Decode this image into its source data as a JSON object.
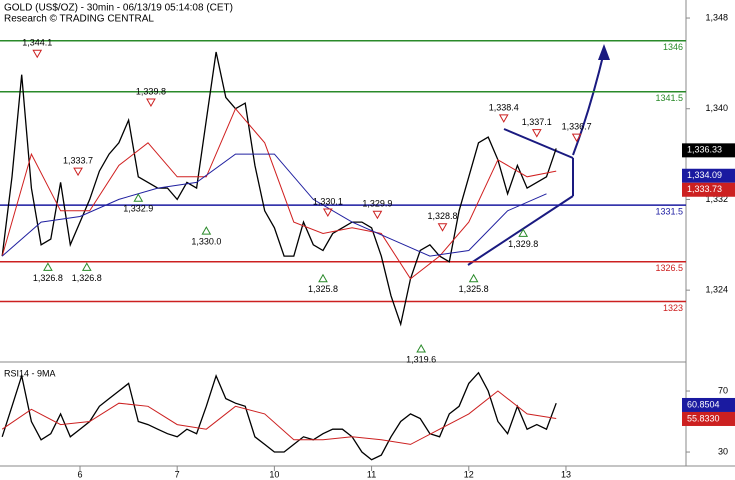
{
  "chart_data": [
    {
      "type": "line",
      "title": "GOLD (US$/OZ) - 30min - 06/13/19 05:14:08 (CET)",
      "subtitle": "Research © TRADING CENTRAL",
      "xlim": [
        1.77,
        72.35
      ],
      "ylim": [
        1317.84,
        1349.59
      ],
      "xticks": [
        {
          "value": 10,
          "label": "6"
        },
        {
          "value": 20,
          "label": "7"
        },
        {
          "value": 30,
          "label": "10"
        },
        {
          "value": 40,
          "label": "11"
        },
        {
          "value": 50,
          "label": "12"
        },
        {
          "value": 60,
          "label": "13"
        }
      ],
      "yticks": [
        {
          "value": 1348,
          "label": "1,348"
        },
        {
          "value": 1340,
          "label": "1,340"
        },
        {
          "value": 1332,
          "label": "1,332"
        },
        {
          "value": 1324,
          "label": "1,324"
        }
      ],
      "series": [
        {
          "color": "#000000",
          "x": [
            2,
            3,
            4,
            5,
            6,
            7,
            8,
            9,
            10,
            11,
            12,
            13,
            14,
            15,
            16,
            17,
            18,
            19,
            20,
            21,
            22,
            23,
            24,
            25,
            26,
            27,
            28,
            29,
            30,
            31,
            32,
            33,
            34,
            35,
            36,
            37,
            38,
            39,
            40,
            41,
            42,
            43,
            44,
            45,
            46,
            47,
            48,
            49,
            50,
            51,
            52,
            53,
            54,
            55,
            56,
            57,
            58,
            59
          ],
          "values": [
            1327,
            1334,
            1343,
            1333,
            1328,
            1328.5,
            1333.5,
            1328,
            1330,
            1332,
            1334.5,
            1336,
            1337,
            1339,
            1334,
            1333.5,
            1333,
            1333,
            1332,
            1333.5,
            1333,
            1339,
            1345,
            1341,
            1340,
            1340.5,
            1335,
            1331,
            1329.5,
            1327,
            1327,
            1330,
            1328,
            1327.5,
            1329,
            1329.5,
            1330,
            1330,
            1329.5,
            1327,
            1323.5,
            1321,
            1325,
            1327.5,
            1328,
            1327,
            1326.5,
            1331,
            1334,
            1337,
            1337.5,
            1335.5,
            1332.5,
            1335,
            1333,
            1333.5,
            1334,
            1336.5
          ]
        },
        {
          "color": "#d02020",
          "x": [
            2,
            5,
            8,
            11,
            14,
            17,
            20,
            23,
            26,
            29,
            32,
            35,
            38,
            41,
            44,
            47,
            50,
            53,
            56,
            59
          ],
          "values": [
            1327,
            1336,
            1331,
            1331,
            1335,
            1337,
            1334,
            1334,
            1340,
            1337,
            1330,
            1329,
            1329.5,
            1329,
            1325,
            1327,
            1330,
            1335.5,
            1334,
            1334.5
          ]
        },
        {
          "color": "#2020a0",
          "x": [
            2,
            6,
            10,
            14,
            18,
            22,
            26,
            30,
            34,
            38,
            42,
            46,
            50,
            54,
            58
          ],
          "values": [
            1327,
            1330,
            1330.5,
            1332,
            1333,
            1333.5,
            1336,
            1336,
            1332,
            1330,
            1328.5,
            1327,
            1327.5,
            1331,
            1332.5
          ]
        }
      ],
      "levels": [
        {
          "value": 1346,
          "color": "#2a8a2a"
        },
        {
          "value": 1341.5,
          "color": "#2a8a2a"
        },
        {
          "value": 1331.5,
          "color": "#1a1aa0"
        },
        {
          "value": 1326.5,
          "color": "#cc2020"
        },
        {
          "value": 1323,
          "color": "#cc2020"
        }
      ],
      "annotations": [
        {
          "kind": "high",
          "x": 5.6,
          "value": 1344.1,
          "label": "1,344.1"
        },
        {
          "kind": "high",
          "x": 9.8,
          "value": 1333.7,
          "label": "1,333.7"
        },
        {
          "kind": "high",
          "x": 17.3,
          "value": 1339.8,
          "label": "1,339.8"
        },
        {
          "kind": "high",
          "x": 35.5,
          "value": 1330.1,
          "label": "1,330.1"
        },
        {
          "kind": "high",
          "x": 40.6,
          "value": 1329.9,
          "label": "1,329.9"
        },
        {
          "kind": "high",
          "x": 47.3,
          "value": 1328.8,
          "label": "1,328.8"
        },
        {
          "kind": "high",
          "x": 53.6,
          "value": 1338.4,
          "label": "1,338.4"
        },
        {
          "kind": "high",
          "x": 57.0,
          "value": 1337.1,
          "label": "1,337.1"
        },
        {
          "kind": "high",
          "x": 61.1,
          "value": 1336.7,
          "label": "1,336.7"
        },
        {
          "kind": "low",
          "x": 6.7,
          "value": 1326.8,
          "label": "1,326.8"
        },
        {
          "kind": "low",
          "x": 10.7,
          "value": 1326.8,
          "label": "1,326.8"
        },
        {
          "kind": "low",
          "x": 16.0,
          "value": 1332.9,
          "label": "1,332.9"
        },
        {
          "kind": "low",
          "x": 23.0,
          "value": 1330.0,
          "label": "1,330.0"
        },
        {
          "kind": "low",
          "x": 35.0,
          "value": 1325.8,
          "label": "1,325.8"
        },
        {
          "kind": "low",
          "x": 45.1,
          "value": 1319.6,
          "label": "1,319.6"
        },
        {
          "kind": "low",
          "x": 50.5,
          "value": 1325.8,
          "label": "1,325.8"
        },
        {
          "kind": "low",
          "x": 55.6,
          "value": 1329.8,
          "label": "1,329.8"
        }
      ],
      "last_values": [
        {
          "value": 1336.33,
          "label": "1,336.33",
          "color": "#000000"
        },
        {
          "value": 1334.09,
          "label": "1,334.09",
          "color": "#1a1aa0"
        },
        {
          "value": 1333.73,
          "label": "1,333.73",
          "color": "#cc2020"
        }
      ]
    },
    {
      "type": "line",
      "title": "RSI14 - 9MA",
      "xlim": [
        1.77,
        72.35
      ],
      "ylim": [
        21.5,
        86.4
      ],
      "yticks": [
        70,
        30
      ],
      "series": [
        {
          "color": "#000000",
          "x": [
            2,
            3,
            4,
            5,
            6,
            7,
            8,
            9,
            10,
            11,
            12,
            13,
            14,
            15,
            16,
            17,
            18,
            19,
            20,
            21,
            22,
            23,
            24,
            25,
            26,
            27,
            28,
            29,
            30,
            31,
            32,
            33,
            34,
            35,
            36,
            37,
            38,
            39,
            40,
            41,
            42,
            43,
            44,
            45,
            46,
            47,
            48,
            49,
            50,
            51,
            52,
            53,
            54,
            55,
            56,
            57,
            58,
            59
          ],
          "values": [
            40,
            60,
            80,
            50,
            38,
            42,
            55,
            40,
            45,
            50,
            60,
            65,
            70,
            75,
            50,
            48,
            45,
            42,
            40,
            45,
            42,
            60,
            80,
            65,
            62,
            60,
            40,
            35,
            30,
            30,
            35,
            40,
            38,
            42,
            45,
            45,
            40,
            30,
            25,
            28,
            40,
            50,
            55,
            52,
            42,
            40,
            55,
            60,
            75,
            82,
            70,
            50,
            42,
            60,
            45,
            48,
            45,
            62
          ]
        },
        {
          "color": "#cc2020",
          "x": [
            2,
            5,
            8,
            11,
            14,
            17,
            20,
            23,
            26,
            29,
            32,
            35,
            38,
            41,
            44,
            47,
            50,
            53,
            56,
            59
          ],
          "values": [
            45,
            58,
            48,
            50,
            62,
            60,
            48,
            45,
            60,
            55,
            38,
            38,
            40,
            38,
            35,
            45,
            55,
            70,
            55,
            52
          ]
        }
      ],
      "last_values": [
        {
          "value": 60.8504,
          "label": "60.8504",
          "color": "#1a1aa0"
        },
        {
          "value": 55.833,
          "label": "55.8330",
          "color": "#cc2020"
        }
      ]
    }
  ]
}
